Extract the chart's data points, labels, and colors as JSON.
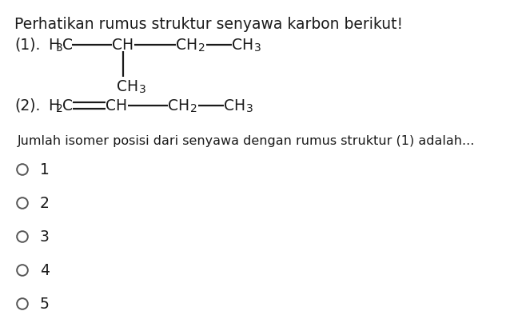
{
  "bg_color": "#ffffff",
  "text_color": "#1a1a1a",
  "title": "Perhatikan rumus struktur senyawa karbon berikut!",
  "title_fs": 13.5,
  "chem_fs": 13.5,
  "sub_fs": 10.0,
  "question": "Jumlah isomer posisi dari senyawa dengan rumus struktur (1) adalah...",
  "q_fs": 11.5,
  "options": [
    "1",
    "2",
    "3",
    "4",
    "5"
  ],
  "opt_fs": 13.5,
  "circle_r": 0.013
}
